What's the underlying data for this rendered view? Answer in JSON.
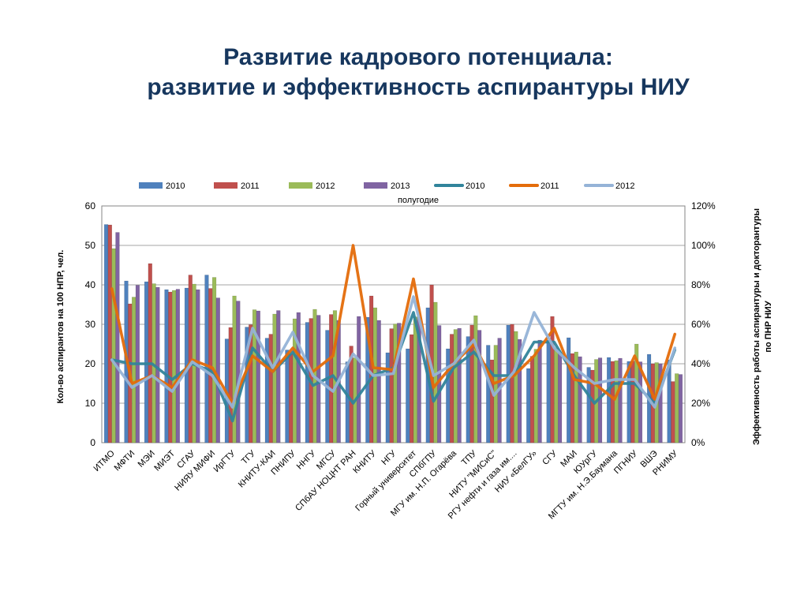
{
  "slide": {
    "title_line1": "Развитие кадрового потенциала:",
    "title_line2": "развитие и эффективность аспирантуры НИУ"
  },
  "chart_data": {
    "type": "bar",
    "subtitle": "полугодие",
    "ylabel": "Кол-во аспирантов на 100 НПР, чел.",
    "y2label_line1": "Эффективность работы аспирантуры и докторантуры",
    "y2label_line2": "по ПНР НИУ",
    "ylim": [
      0,
      60
    ],
    "yticks": [
      "0",
      "10",
      "20",
      "30",
      "40",
      "50",
      "60"
    ],
    "y2lim": [
      0,
      120
    ],
    "y2ticks": [
      "0%",
      "20%",
      "40%",
      "60%",
      "80%",
      "100%",
      "120%"
    ],
    "legend_position": "top",
    "gridlines": true,
    "categories": [
      "ИТМО",
      "МФТИ",
      "МЭИ",
      "МИЭТ",
      "СГАУ",
      "НИЯУ МИФИ",
      "ИрГТУ",
      "ТГУ",
      "КНИТУ-КАИ",
      "ПНИПУ",
      "ННГУ",
      "МГСУ",
      "СПбАУ НОЦНТ РАН",
      "КНИТУ",
      "НГУ",
      "Горный университет",
      "СПбГПУ",
      "МГУ им. Н.П. Огарёва",
      "ТПУ",
      "НИТУ \"МИСиС\"",
      "РГУ нефти и газа им....",
      "НИУ «БелГУ»",
      "СГУ",
      "МАИ",
      "ЮУрГУ",
      "МГТУ им. Н.Э.Баумана",
      "ПГНИУ",
      "ВШЭ",
      "РНИМУ"
    ],
    "bar_series": [
      {
        "name": "2010",
        "color": "#4f81bd",
        "values": [
          55.3,
          41,
          40.8,
          38.8,
          39.2,
          42.5,
          26.3,
          29.3,
          26.5,
          23.5,
          30.5,
          28.5,
          20.5,
          31.8,
          22.8,
          23.8,
          34.2,
          23.8,
          26.9,
          24.7,
          29.8,
          18.8,
          26.0,
          26.6,
          19.1,
          21.6,
          20.6,
          22.4,
          21.0
        ]
      },
      {
        "name": "2011",
        "color": "#c0504d",
        "values": [
          55.2,
          35.2,
          45.4,
          38.2,
          42.5,
          39.1,
          29.2,
          29.9,
          27.5,
          22.5,
          31.5,
          32.5,
          24.5,
          37.2,
          28.9,
          27.4,
          40.0,
          27.5,
          29.8,
          21.0,
          30.0,
          21.9,
          32.0,
          22.6,
          18.4,
          20.6,
          20.7,
          20.0,
          15.5
        ]
      },
      {
        "name": "2012",
        "color": "#9bbb59",
        "values": [
          49.2,
          36.9,
          40.3,
          38.6,
          40.2,
          41.9,
          37.2,
          33.7,
          32.6,
          31.4,
          33.8,
          33.5,
          21.5,
          34.2,
          30.1,
          31.9,
          35.6,
          28.7,
          32.2,
          24.7,
          28.2,
          23.7,
          24.0,
          23.0,
          21.1,
          20.8,
          25.0,
          20.3,
          17.5
        ]
      },
      {
        "name": "2013",
        "color": "#8064a2",
        "values": [
          53.3,
          39.9,
          39.4,
          38.9,
          38.8,
          36.7,
          35.9,
          33.4,
          33.5,
          33.0,
          32.3,
          31.0,
          32.0,
          31.0,
          30.3,
          31.8,
          29.7,
          29.0,
          28.5,
          26.5,
          26.2,
          26.0,
          22.9,
          21.8,
          21.5,
          21.4,
          20.5,
          20.0,
          17.3
        ]
      }
    ],
    "line_series": [
      {
        "name": "2010",
        "color": "#31849b",
        "values": [
          0.42,
          0.4,
          0.4,
          0.32,
          0.4,
          0.36,
          0.11,
          0.48,
          0.36,
          0.46,
          0.29,
          0.34,
          0.2,
          0.34,
          0.38,
          0.66,
          0.21,
          0.38,
          0.46,
          0.34,
          0.34,
          0.51,
          0.51,
          0.34,
          0.2,
          0.3,
          0.3,
          0.2,
          0.47
        ]
      },
      {
        "name": "2011",
        "color": "#e46c0a",
        "values": [
          0.78,
          0.3,
          0.34,
          0.28,
          0.42,
          0.38,
          0.2,
          0.44,
          0.36,
          0.48,
          0.36,
          0.44,
          1.0,
          0.38,
          0.37,
          0.83,
          0.28,
          0.4,
          0.5,
          0.3,
          0.34,
          0.44,
          0.58,
          0.32,
          0.3,
          0.22,
          0.44,
          0.22,
          0.55
        ]
      },
      {
        "name": "2012",
        "color": "#95b3d7",
        "values": [
          0.42,
          0.28,
          0.34,
          0.26,
          0.41,
          0.34,
          0.18,
          0.58,
          0.38,
          0.56,
          0.34,
          0.26,
          0.45,
          0.34,
          0.35,
          0.74,
          0.34,
          0.4,
          0.52,
          0.24,
          0.36,
          0.66,
          0.48,
          0.38,
          0.3,
          0.32,
          0.32,
          0.18,
          0.48
        ]
      }
    ]
  }
}
